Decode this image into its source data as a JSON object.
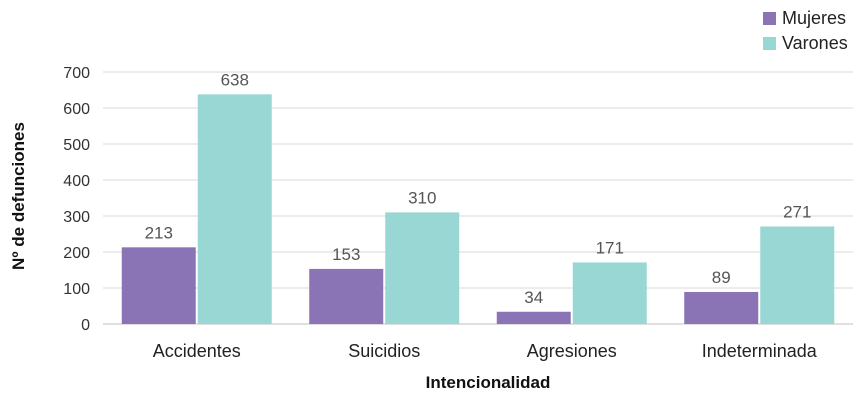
{
  "chart_data": {
    "type": "bar",
    "categories": [
      "Accidentes",
      "Suicidios",
      "Agresiones",
      "Indeterminada"
    ],
    "series": [
      {
        "name": "Mujeres",
        "values": [
          213,
          153,
          34,
          89
        ],
        "color": "#8a74b6"
      },
      {
        "name": "Varones",
        "values": [
          638,
          310,
          171,
          271
        ],
        "color": "#98d7d3"
      }
    ],
    "xlabel": "Intencionalidad",
    "ylabel": "Nº de defunciones",
    "ylim": [
      0,
      700
    ],
    "yticks": [
      0,
      100,
      200,
      300,
      400,
      500,
      600,
      700
    ],
    "grid": true,
    "legend": "top-right",
    "data_labels": true
  }
}
